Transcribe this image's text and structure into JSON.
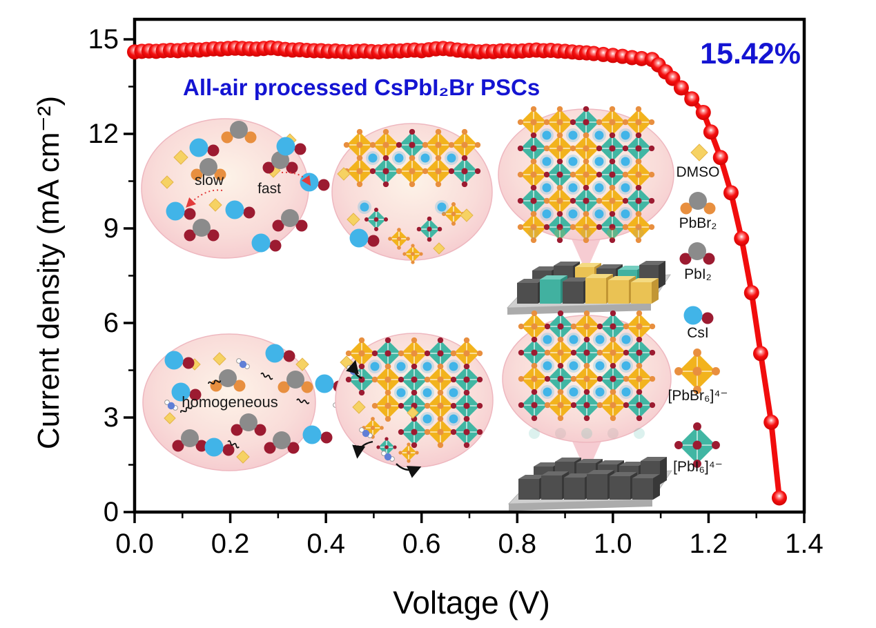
{
  "chart_data": {
    "type": "scatter-line",
    "title": "",
    "xlabel": "Voltage (V)",
    "ylabel": "Current density (mA cm⁻²)",
    "annotation": "15.42%",
    "xlim": [
      0.0,
      1.4
    ],
    "ylim": [
      0,
      15.6
    ],
    "grid": false,
    "x_ticks": [
      0.0,
      0.2,
      0.4,
      0.6,
      0.8,
      1.0,
      1.2,
      1.4
    ],
    "x_tick_labels": [
      "0.0",
      "0.2",
      "0.4",
      "0.6",
      "0.8",
      "1.0",
      "1.2",
      "1.4"
    ],
    "x_minor_ticks": [
      0.1,
      0.3,
      0.5,
      0.7,
      0.9,
      1.1,
      1.3
    ],
    "y_ticks": [
      0,
      3,
      6,
      9,
      12,
      15
    ],
    "y_tick_labels": [
      "0",
      "3",
      "6",
      "9",
      "12",
      "15"
    ],
    "y_minor_ticks": [
      1.5,
      4.5,
      7.5,
      10.5,
      13.5
    ],
    "series": [
      {
        "name": "All-air processed CsPbI2Br PSC J-V curve",
        "marker": "sphere",
        "color": "#f10d0d",
        "points": [
          [
            0.0,
            14.6
          ],
          [
            0.015,
            14.62
          ],
          [
            0.03,
            14.63
          ],
          [
            0.045,
            14.62
          ],
          [
            0.06,
            14.64
          ],
          [
            0.075,
            14.65
          ],
          [
            0.09,
            14.64
          ],
          [
            0.105,
            14.66
          ],
          [
            0.12,
            14.67
          ],
          [
            0.135,
            14.66
          ],
          [
            0.15,
            14.68
          ],
          [
            0.165,
            14.7
          ],
          [
            0.18,
            14.69
          ],
          [
            0.195,
            14.71
          ],
          [
            0.21,
            14.72
          ],
          [
            0.225,
            14.71
          ],
          [
            0.24,
            14.7
          ],
          [
            0.255,
            14.69
          ],
          [
            0.27,
            14.71
          ],
          [
            0.285,
            14.73
          ],
          [
            0.3,
            14.71
          ],
          [
            0.315,
            14.68
          ],
          [
            0.33,
            14.66
          ],
          [
            0.345,
            14.67
          ],
          [
            0.36,
            14.65
          ],
          [
            0.375,
            14.64
          ],
          [
            0.39,
            14.64
          ],
          [
            0.405,
            14.62
          ],
          [
            0.42,
            14.63
          ],
          [
            0.435,
            14.61
          ],
          [
            0.45,
            14.6
          ],
          [
            0.465,
            14.62
          ],
          [
            0.48,
            14.63
          ],
          [
            0.495,
            14.61
          ],
          [
            0.51,
            14.6
          ],
          [
            0.525,
            14.62
          ],
          [
            0.54,
            14.63
          ],
          [
            0.555,
            14.63
          ],
          [
            0.57,
            14.65
          ],
          [
            0.585,
            14.66
          ],
          [
            0.6,
            14.64
          ],
          [
            0.615,
            14.67
          ],
          [
            0.63,
            14.7
          ],
          [
            0.645,
            14.71
          ],
          [
            0.66,
            14.69
          ],
          [
            0.675,
            14.66
          ],
          [
            0.69,
            14.64
          ],
          [
            0.705,
            14.62
          ],
          [
            0.72,
            14.6
          ],
          [
            0.735,
            14.62
          ],
          [
            0.75,
            14.61
          ],
          [
            0.765,
            14.63
          ],
          [
            0.78,
            14.64
          ],
          [
            0.795,
            14.62
          ],
          [
            0.81,
            14.63
          ],
          [
            0.825,
            14.65
          ],
          [
            0.84,
            14.66
          ],
          [
            0.855,
            14.64
          ],
          [
            0.87,
            14.65
          ],
          [
            0.885,
            14.63
          ],
          [
            0.9,
            14.62
          ],
          [
            0.915,
            14.6
          ],
          [
            0.93,
            14.58
          ],
          [
            0.945,
            14.57
          ],
          [
            0.96,
            14.55
          ],
          [
            0.98,
            14.52
          ],
          [
            1.0,
            14.49
          ],
          [
            1.02,
            14.46
          ],
          [
            1.04,
            14.42
          ],
          [
            1.06,
            14.39
          ],
          [
            1.082,
            14.36
          ],
          [
            1.095,
            14.19
          ],
          [
            1.11,
            13.97
          ],
          [
            1.125,
            13.76
          ],
          [
            1.143,
            13.46
          ],
          [
            1.165,
            13.11
          ],
          [
            1.189,
            12.68
          ],
          [
            1.205,
            12.06
          ],
          [
            1.225,
            11.25
          ],
          [
            1.247,
            10.13
          ],
          [
            1.269,
            8.68
          ],
          [
            1.29,
            6.96
          ],
          [
            1.309,
            5.03
          ],
          [
            1.331,
            2.85
          ],
          [
            1.348,
            0.45
          ]
        ]
      }
    ]
  },
  "inset": {
    "title": "All-air processed CsPbI₂Br PSCs",
    "stage_labels": {
      "slow": "slow",
      "fast": "fast",
      "homogeneous": "homogeneous"
    }
  },
  "legend": {
    "items": [
      {
        "label": "DMSO",
        "icon": "dmso-diamond-icon"
      },
      {
        "label": "PbBr₂",
        "icon": "pbbr2-molecule-icon"
      },
      {
        "label": "PbI₂",
        "icon": "pbi2-molecule-icon"
      },
      {
        "label": "CsI",
        "icon": "csi-molecule-icon"
      },
      {
        "label": "[PbBr₆]⁴⁻",
        "icon": "pbbr6-octahedron-icon"
      },
      {
        "label": "[PbI₆]⁴⁻",
        "icon": "pbi6-octahedron-icon"
      }
    ]
  },
  "colors": {
    "curve": "#f10d0d",
    "accent_blue": "#1414d2",
    "cs_blue": "#41b4e8",
    "iodide_red": "#9c1b31",
    "lead_gray": "#8b8b8b",
    "bromide_orange": "#e88f3f",
    "dmso_yellow": "#f6d263",
    "octa_yellow": "#f2b31d",
    "octa_teal": "#41b6a3",
    "water_blue": "#5f7fd6",
    "ellipse_pink_edge": "#f3bec7",
    "ellipse_cream": "#fdf3e8",
    "cube_dark": "#4e4e4e",
    "cube_yellow": "#eac254",
    "cube_teal": "#41b1a0",
    "substrate_gray": "#cfcfcf",
    "axis_black": "#000000"
  }
}
